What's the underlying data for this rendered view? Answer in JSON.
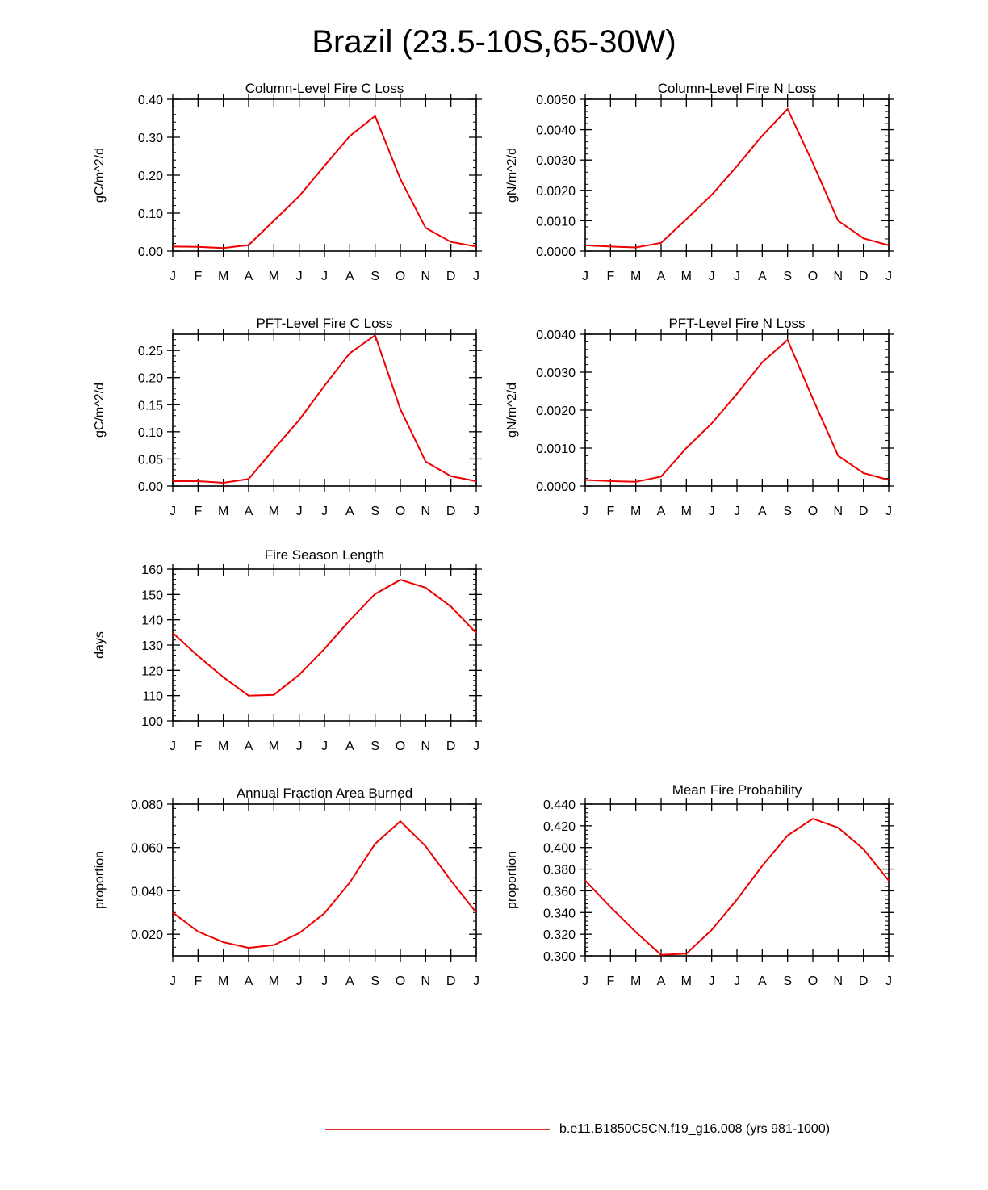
{
  "title": "Brazil (23.5-10S,65-30W)",
  "legend": {
    "label": "b.e11.B1850C5CN.f19_g16.008 (yrs 981-1000)",
    "color": "#e0302c"
  },
  "line_color": "#ee0000",
  "chart_data": [
    {
      "type": "line",
      "title": "Column-Level Fire C Loss",
      "ylabel": "gC/m^2/d",
      "xlabel": "",
      "categories": [
        "J",
        "F",
        "M",
        "A",
        "M",
        "J",
        "J",
        "A",
        "S",
        "O",
        "N",
        "D",
        "J"
      ],
      "series": [
        {
          "name": "b.e11.B1850C5CN.f19_g16.008 (yrs 981-1000)",
          "values": [
            0.012,
            0.011,
            0.008,
            0.016,
            0.08,
            0.145,
            0.225,
            0.303,
            0.356,
            0.19,
            0.061,
            0.024,
            0.012
          ]
        }
      ],
      "ylim": [
        0,
        0.4
      ],
      "yticks": [
        0,
        0.1,
        0.2,
        0.3,
        0.4
      ],
      "ytick_labels": [
        "0.00",
        "0.10",
        "0.20",
        "0.30",
        "0.40"
      ],
      "yminor_step": 0.02
    },
    {
      "type": "line",
      "title": "Column-Level Fire N Loss",
      "ylabel": "gN/m^2/d",
      "xlabel": "",
      "categories": [
        "J",
        "F",
        "M",
        "A",
        "M",
        "J",
        "J",
        "A",
        "S",
        "O",
        "N",
        "D",
        "J"
      ],
      "series": [
        {
          "name": "b.e11.B1850C5CN.f19_g16.008 (yrs 981-1000)",
          "values": [
            0.00019,
            0.00015,
            0.00012,
            0.00027,
            0.00105,
            0.00185,
            0.0028,
            0.0038,
            0.00468,
            0.0029,
            0.001,
            0.00042,
            0.00019
          ]
        }
      ],
      "ylim": [
        0,
        0.005
      ],
      "yticks": [
        0,
        0.001,
        0.002,
        0.003,
        0.004,
        0.005
      ],
      "ytick_labels": [
        "0.0000",
        "0.0010",
        "0.0020",
        "0.0030",
        "0.0040",
        "0.0050"
      ],
      "yminor_step": 0.0002
    },
    {
      "type": "line",
      "title": "PFT-Level Fire C Loss",
      "ylabel": "gC/m^2/d",
      "xlabel": "",
      "categories": [
        "J",
        "F",
        "M",
        "A",
        "M",
        "J",
        "J",
        "A",
        "S",
        "O",
        "N",
        "D",
        "J"
      ],
      "series": [
        {
          "name": "b.e11.B1850C5CN.f19_g16.008 (yrs 981-1000)",
          "values": [
            0.009,
            0.009,
            0.006,
            0.013,
            0.068,
            0.122,
            0.185,
            0.245,
            0.278,
            0.142,
            0.045,
            0.018,
            0.009
          ]
        }
      ],
      "ylim": [
        0,
        0.28
      ],
      "yticks": [
        0,
        0.05,
        0.1,
        0.15,
        0.2,
        0.25
      ],
      "ytick_labels": [
        "0.00",
        "0.05",
        "0.10",
        "0.15",
        "0.20",
        "0.25"
      ],
      "yminor_step": 0.01
    },
    {
      "type": "line",
      "title": "PFT-Level Fire N Loss",
      "ylabel": "gN/m^2/d",
      "xlabel": "",
      "categories": [
        "J",
        "F",
        "M",
        "A",
        "M",
        "J",
        "J",
        "A",
        "S",
        "O",
        "N",
        "D",
        "J"
      ],
      "series": [
        {
          "name": "b.e11.B1850C5CN.f19_g16.008 (yrs 981-1000)",
          "values": [
            0.00016,
            0.00013,
            0.00011,
            0.00025,
            0.001,
            0.00165,
            0.00243,
            0.00326,
            0.00385,
            0.0023,
            0.0008,
            0.00034,
            0.00016
          ]
        }
      ],
      "ylim": [
        0,
        0.004
      ],
      "yticks": [
        0,
        0.001,
        0.002,
        0.003,
        0.004
      ],
      "ytick_labels": [
        "0.0000",
        "0.0010",
        "0.0020",
        "0.0030",
        "0.0040"
      ],
      "yminor_step": 0.0002
    },
    {
      "type": "line",
      "title": "Fire Season Length",
      "ylabel": "days",
      "xlabel": "",
      "categories": [
        "J",
        "F",
        "M",
        "A",
        "M",
        "J",
        "J",
        "A",
        "S",
        "O",
        "N",
        "D",
        "J"
      ],
      "series": [
        {
          "name": "b.e11.B1850C5CN.f19_g16.008 (yrs 981-1000)",
          "values": [
            134.8,
            125.7,
            117.3,
            110,
            110.3,
            118.3,
            128.5,
            139.8,
            150.2,
            155.8,
            152.7,
            145.2,
            134.8
          ]
        }
      ],
      "ylim": [
        100,
        160
      ],
      "yticks": [
        100,
        110,
        120,
        130,
        140,
        150,
        160
      ],
      "ytick_labels": [
        "100",
        "110",
        "120",
        "130",
        "140",
        "150",
        "160"
      ],
      "yminor_step": 2
    },
    {
      "type": "line",
      "title": "Annual Fraction Area Burned",
      "ylabel": "proportion",
      "xlabel": "",
      "categories": [
        "J",
        "F",
        "M",
        "A",
        "M",
        "J",
        "J",
        "A",
        "S",
        "O",
        "N",
        "D",
        "J"
      ],
      "series": [
        {
          "name": "b.e11.B1850C5CN.f19_g16.008 (yrs 981-1000)",
          "values": [
            0.03,
            0.0212,
            0.0163,
            0.0137,
            0.015,
            0.0205,
            0.0297,
            0.0438,
            0.0617,
            0.0721,
            0.0606,
            0.0447,
            0.03
          ]
        }
      ],
      "ylim": [
        0.01,
        0.08
      ],
      "yticks": [
        0.02,
        0.04,
        0.06,
        0.08
      ],
      "ytick_labels": [
        "0.020",
        "0.040",
        "0.060",
        "0.080"
      ],
      "yminor_step": 0.004
    },
    {
      "type": "line",
      "title": "Mean Fire Probability",
      "ylabel": "proportion",
      "xlabel": "",
      "categories": [
        "J",
        "F",
        "M",
        "A",
        "M",
        "J",
        "J",
        "A",
        "S",
        "O",
        "N",
        "D",
        "J"
      ],
      "series": [
        {
          "name": "b.e11.B1850C5CN.f19_g16.008 (yrs 981-1000)",
          "values": [
            0.3695,
            0.345,
            0.322,
            0.301,
            0.302,
            0.324,
            0.352,
            0.383,
            0.411,
            0.4265,
            0.4183,
            0.3985,
            0.3695
          ]
        }
      ],
      "ylim": [
        0.3,
        0.44
      ],
      "yticks": [
        0.3,
        0.32,
        0.34,
        0.36,
        0.38,
        0.4,
        0.42,
        0.44
      ],
      "ytick_labels": [
        "0.300",
        "0.320",
        "0.340",
        "0.360",
        "0.380",
        "0.400",
        "0.420",
        "0.440"
      ],
      "yminor_step": 0.004
    }
  ]
}
